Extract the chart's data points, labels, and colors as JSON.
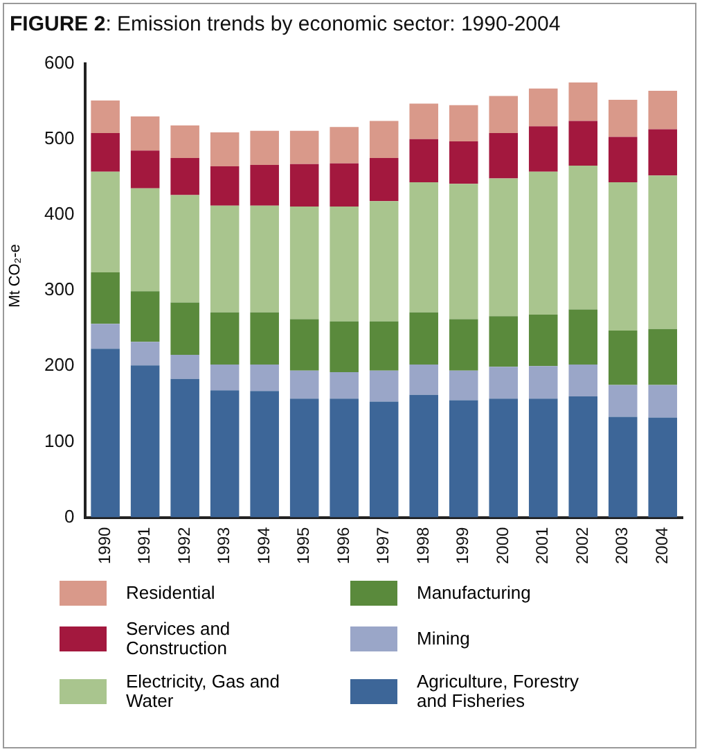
{
  "chart_data": {
    "type": "bar",
    "title": "FIGURE 2: Emission trends by economic sector: 1990-2004",
    "ylabel": "Mt CO₂-e",
    "stacked": true,
    "legend": "bottom",
    "grid": false,
    "categories": [
      "1990",
      "1991",
      "1992",
      "1993",
      "1994",
      "1995",
      "1996",
      "1997",
      "1998",
      "1999",
      "2000",
      "2001",
      "2002",
      "2003",
      "2004"
    ],
    "ylim": [
      0,
      600
    ],
    "yticks": [
      0,
      100,
      200,
      300,
      400,
      500,
      600
    ],
    "series": [
      {
        "name": "Agriculture, Forestry and Fisheries",
        "color": "#3d6698",
        "values": [
          223,
          201,
          183,
          168,
          167,
          157,
          157,
          153,
          162,
          155,
          157,
          157,
          160,
          133,
          132
        ]
      },
      {
        "name": "Mining",
        "color": "#9aa6c8",
        "values": [
          33,
          31,
          32,
          34,
          35,
          37,
          35,
          41,
          40,
          39,
          42,
          43,
          42,
          42,
          43
        ]
      },
      {
        "name": "Manufacturing",
        "color": "#5a8a3c",
        "values": [
          68,
          67,
          69,
          69,
          69,
          68,
          67,
          65,
          69,
          68,
          67,
          68,
          73,
          72,
          74
        ]
      },
      {
        "name": "Electricity, Gas and Water",
        "color": "#a9c58e",
        "values": [
          133,
          136,
          142,
          141,
          141,
          149,
          152,
          159,
          172,
          179,
          182,
          189,
          190,
          196,
          203
        ]
      },
      {
        "name": "Services and Construction",
        "color": "#a3183e",
        "values": [
          51,
          50,
          49,
          52,
          54,
          56,
          57,
          57,
          57,
          56,
          60,
          60,
          59,
          60,
          61
        ]
      },
      {
        "name": "Residential",
        "color": "#d9998a",
        "values": [
          43,
          45,
          43,
          45,
          45,
          44,
          48,
          49,
          47,
          48,
          49,
          50,
          51,
          49,
          51
        ]
      }
    ]
  }
}
